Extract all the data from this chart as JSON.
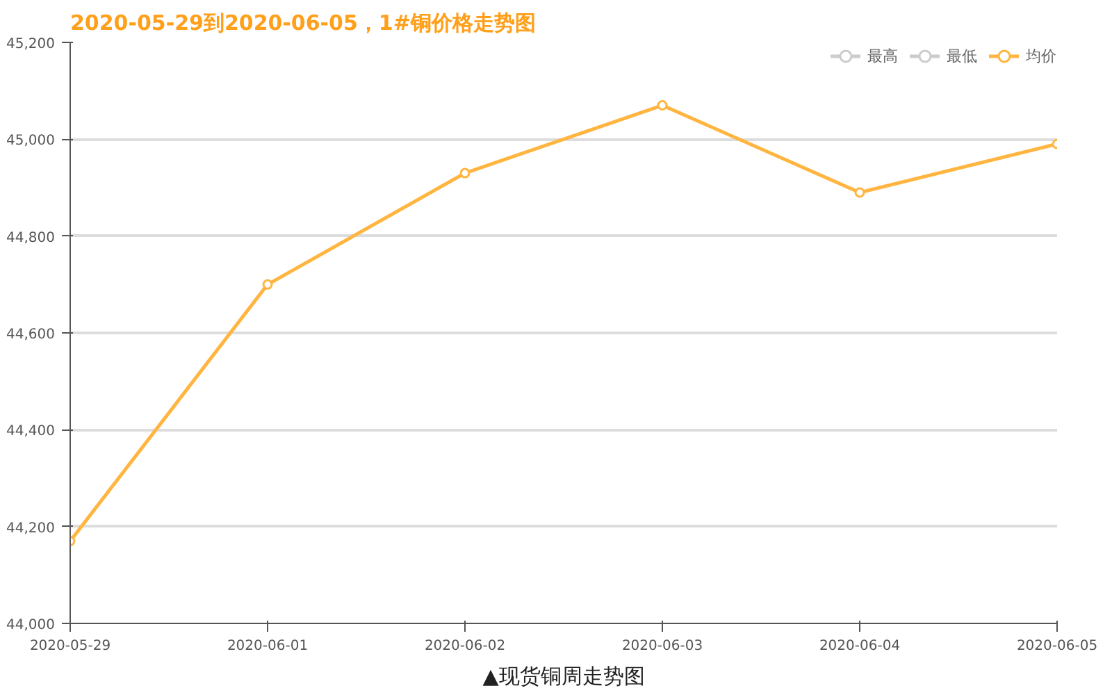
{
  "chart_data": {
    "type": "line",
    "title": "2020-05-29到2020-06-05，1#铜价格走势图",
    "categories": [
      "2020-05-29",
      "2020-06-01",
      "2020-06-02",
      "2020-06-03",
      "2020-06-04",
      "2020-06-05"
    ],
    "series": [
      {
        "name": "最高",
        "color": "#cccccc",
        "values": [
          null,
          null,
          null,
          null,
          null,
          null
        ]
      },
      {
        "name": "最低",
        "color": "#cccccc",
        "values": [
          null,
          null,
          null,
          null,
          null,
          null
        ]
      },
      {
        "name": "均价",
        "color": "#ffb53f",
        "values": [
          44170,
          44700,
          44930,
          45070,
          44890,
          44990
        ]
      }
    ],
    "ylim": [
      44000,
      45200
    ],
    "yticks": [
      {
        "value": 44000,
        "label": "44,000"
      },
      {
        "value": 44200,
        "label": "44,200"
      },
      {
        "value": 44400,
        "label": "44,400"
      },
      {
        "value": 44600,
        "label": "44,600"
      },
      {
        "value": 44800,
        "label": "44,800"
      },
      {
        "value": 45000,
        "label": "45,000"
      },
      {
        "value": 45200,
        "label": "45,200"
      }
    ],
    "grid": "y",
    "legend": "top right",
    "marker": "circle",
    "line_style": "solid",
    "annotations": [
      "▲现货铜周走势图"
    ]
  }
}
